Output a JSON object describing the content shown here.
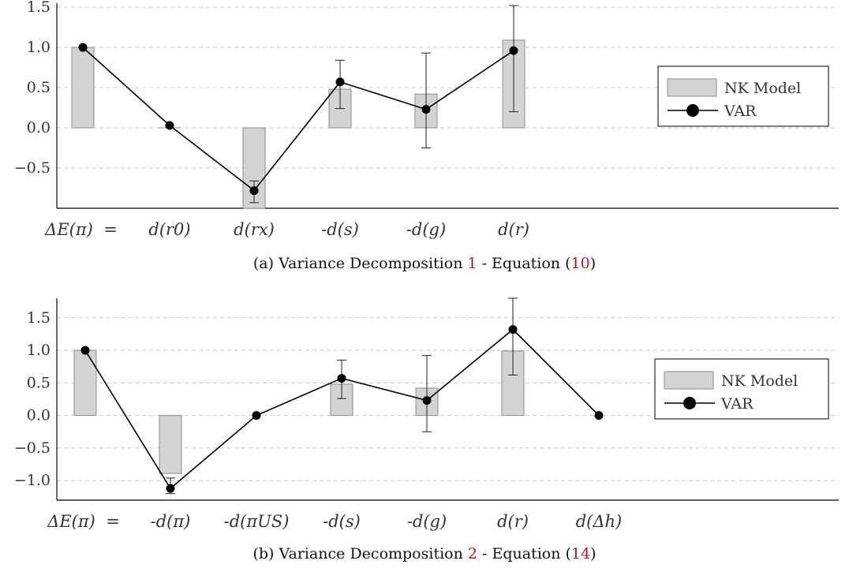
{
  "colors": {
    "bar_fill": "#d3d3d3",
    "bar_stroke": "#8c8c8c",
    "line": "#000000",
    "grid": "#c8c8c8",
    "axis": "#000000",
    "reference": "#b11a1a"
  },
  "chart_data": [
    {
      "type": "bar",
      "caption": {
        "prefix": "(a) Variance Decomposition ",
        "ref": "1",
        "middle": " - Equation (",
        "eq": "10",
        "suffix": ")"
      },
      "categories": [
        "ΔE(π)  =",
        "d(r0)",
        "d(rx)",
        "-d(s)",
        "-d(g)",
        "d(r)"
      ],
      "yticks": [
        "1.5",
        "1.0",
        "0.5",
        "0.0",
        "−0.5"
      ],
      "ytick_values": [
        1.5,
        1.0,
        0.5,
        0.0,
        -0.5
      ],
      "ylim": [
        -1.0,
        1.55
      ],
      "grid": true,
      "legend_position": "right",
      "series": [
        {
          "name": "NK Model",
          "kind": "bar",
          "values": [
            1.0,
            0.0,
            -1.0,
            0.48,
            0.42,
            1.09
          ]
        },
        {
          "name": "VAR",
          "kind": "line-marker",
          "values": [
            1.0,
            0.03,
            -0.78,
            0.57,
            0.23,
            0.96
          ],
          "err_low": [
            null,
            null,
            -0.93,
            0.24,
            -0.25,
            0.2
          ],
          "err_high": [
            null,
            null,
            -0.66,
            0.84,
            0.93,
            1.52
          ]
        }
      ]
    },
    {
      "type": "bar",
      "caption": {
        "prefix": "(b) Variance Decomposition ",
        "ref": "2",
        "middle": " - Equation (",
        "eq": "14",
        "suffix": ")"
      },
      "categories": [
        "ΔE(π)  =",
        "-d(π)",
        "-d(πUS)",
        "-d(s)",
        "-d(g)",
        "d(r)",
        "d(Δh)"
      ],
      "yticks": [
        "1.5",
        "1.0",
        "0.5",
        "0.0",
        "−0.5",
        "−1.0"
      ],
      "ytick_values": [
        1.5,
        1.0,
        0.5,
        0.0,
        -0.5,
        -1.0
      ],
      "ylim": [
        -1.3,
        1.8
      ],
      "grid": true,
      "legend_position": "right",
      "series": [
        {
          "name": "NK Model",
          "kind": "bar",
          "values": [
            1.0,
            -0.89,
            null,
            0.48,
            0.42,
            0.99,
            null
          ]
        },
        {
          "name": "VAR",
          "kind": "line-marker",
          "values": [
            1.0,
            -1.12,
            0.0,
            0.57,
            0.23,
            1.32,
            0.0
          ],
          "err_low": [
            null,
            -1.2,
            null,
            0.26,
            -0.25,
            0.62,
            null
          ],
          "err_high": [
            null,
            -0.96,
            null,
            0.85,
            0.92,
            1.8,
            null
          ]
        }
      ]
    }
  ]
}
